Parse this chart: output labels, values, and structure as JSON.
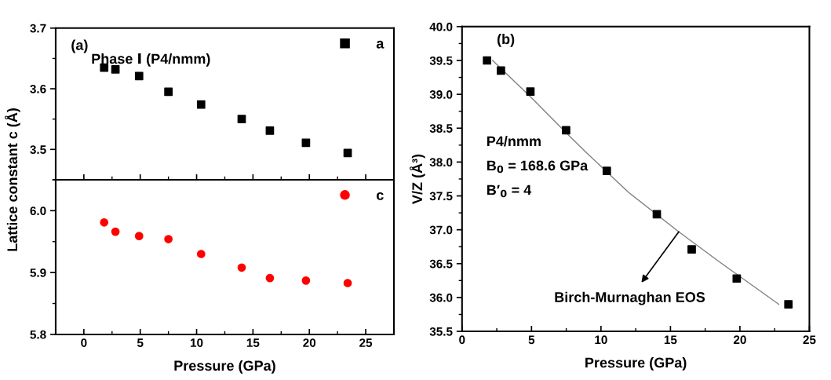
{
  "chart_data": [
    {
      "type": "scatter",
      "ylabel": "Lattice constant c (Å)",
      "x": [
        1.8,
        2.8,
        4.9,
        7.5,
        10.4,
        14.0,
        16.5,
        19.7,
        23.4
      ],
      "xlim": [
        -2.5,
        27.5
      ],
      "xticks": [
        0,
        5,
        10,
        15,
        20,
        25
      ],
      "ylim": [
        3.45,
        3.7
      ],
      "yticks": [
        3.5,
        3.6,
        3.7
      ],
      "tick_labels": "y",
      "legend": "top right",
      "annotations": [
        "(a)",
        "Phase Ⅰ (P4/nmm)"
      ],
      "series": [
        {
          "name": "a",
          "color": "#000000",
          "marker": "square",
          "values": [
            3.635,
            3.632,
            3.621,
            3.595,
            3.574,
            3.55,
            3.531,
            3.511,
            3.494
          ]
        }
      ]
    },
    {
      "type": "scatter",
      "xlabel": "Pressure (GPa)",
      "x": [
        1.8,
        2.8,
        4.9,
        7.5,
        10.4,
        14.0,
        16.5,
        19.7,
        23.4
      ],
      "xlim": [
        -2.5,
        27.5
      ],
      "xticks": [
        0,
        5,
        10,
        15,
        20,
        25
      ],
      "ylim": [
        5.8,
        6.05
      ],
      "yticks": [
        5.8,
        5.9,
        {
          "value": 6.0,
          "label": "6.0"
        }
      ],
      "legend": "top right",
      "series": [
        {
          "name": "c",
          "color": "#ff0000",
          "marker": "circle",
          "values": [
            5.981,
            5.966,
            5.959,
            5.954,
            5.93,
            5.908,
            5.891,
            5.887,
            5.883
          ]
        }
      ]
    },
    {
      "type": "scatter",
      "xlabel": "Pressure (GPa)",
      "ylabel": "V/Z (Å³)",
      "xlim": [
        0,
        25
      ],
      "xticks": [
        0,
        5,
        10,
        15,
        20,
        25
      ],
      "ylim": [
        35.5,
        40.0
      ],
      "yticks": [
        {
          "value": 35.5,
          "label": "35.5"
        },
        {
          "value": 36,
          "label": "36.0"
        },
        {
          "value": 36.5,
          "label": "36.5"
        },
        {
          "value": 37,
          "label": "37.0"
        },
        {
          "value": 37.5,
          "label": "37.5"
        },
        {
          "value": 38,
          "label": "38.0"
        },
        {
          "value": 38.5,
          "label": "38.5"
        },
        {
          "value": 39,
          "label": "39.0"
        },
        {
          "value": 39.5,
          "label": "39.5"
        },
        {
          "value": 40,
          "label": "40.0"
        }
      ],
      "annotations": [
        "(b)",
        "P4/nmm",
        "B$_{0}$ = 168.6 GPa",
        "B′$_{0}$ = 4",
        {
          "text": "Birch-Murnaghan EOS",
          "x": 15.6,
          "y": 36.97
        }
      ],
      "series": [
        {
          "color": "#000000",
          "marker": "square",
          "x": [
            1.8,
            2.8,
            4.92,
            7.49,
            10.42,
            14.02,
            16.53,
            19.77,
            23.49
          ],
          "values": [
            39.5,
            39.35,
            39.04,
            38.47,
            37.87,
            37.23,
            36.71,
            36.28,
            35.9
          ]
        },
        {
          "type": "line",
          "color": "#808080",
          "marker": "none",
          "x": [
            2.2,
            5.0,
            7.5,
            9.0,
            12.0,
            15.6,
            18.5,
            22.8
          ],
          "values": [
            39.5,
            38.95,
            38.43,
            38.13,
            37.55,
            36.97,
            36.53,
            35.9
          ]
        }
      ]
    }
  ]
}
